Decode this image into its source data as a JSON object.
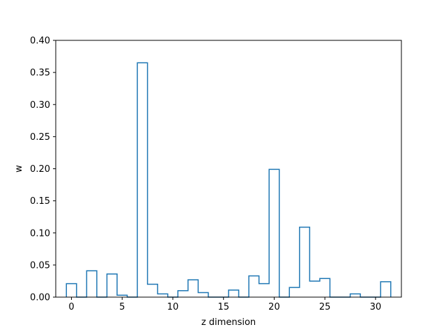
{
  "chart_data": {
    "type": "step",
    "xlabel": "z dimension",
    "ylabel": "w",
    "xlim": [
      -1.55,
      32.55
    ],
    "ylim": [
      0.0,
      0.4
    ],
    "xticks": [
      0,
      5,
      10,
      15,
      20,
      25,
      30
    ],
    "yticks": [
      "0.00",
      "0.05",
      "0.10",
      "0.15",
      "0.20",
      "0.25",
      "0.30",
      "0.35",
      "0.40"
    ],
    "grid": false,
    "color": "#1f77b4",
    "series": [
      {
        "x": [
          0,
          1,
          2,
          3,
          4,
          5,
          6,
          7,
          8,
          9,
          10,
          11,
          12,
          13,
          14,
          15,
          16,
          17,
          18,
          19,
          20,
          21,
          22,
          23,
          24,
          25,
          26,
          27,
          28,
          29,
          30,
          31
        ],
        "values": [
          0.021,
          0.0,
          0.041,
          0.0,
          0.036,
          0.003,
          0.0,
          0.365,
          0.02,
          0.005,
          0.0,
          0.01,
          0.027,
          0.007,
          0.0,
          0.0,
          0.011,
          0.0,
          0.033,
          0.021,
          0.199,
          0.0,
          0.015,
          0.109,
          0.025,
          0.029,
          0.0,
          0.0,
          0.005,
          0.0,
          0.0,
          0.024
        ]
      }
    ]
  }
}
